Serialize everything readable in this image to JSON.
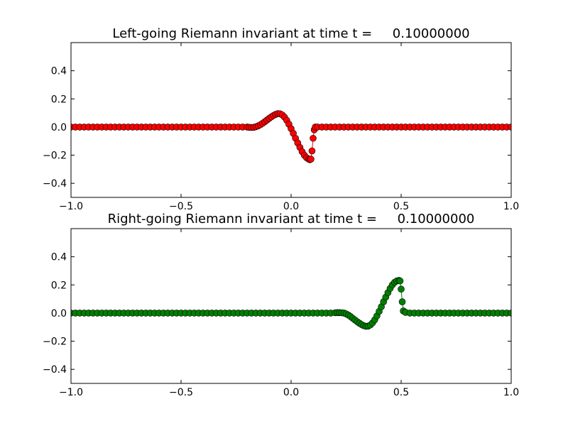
{
  "chart_data": [
    {
      "type": "line",
      "title": "Left-going Riemann invariant at time t =     0.10000000",
      "xlabel": "",
      "ylabel": "",
      "xlim": [
        -1.0,
        1.0
      ],
      "ylim": [
        -0.5,
        0.6
      ],
      "x_ticks": [
        "−1.0",
        "−0.5",
        "0.0",
        "0.5",
        "1.0"
      ],
      "y_ticks": [
        "−0.4",
        "−0.2",
        "0.0",
        "0.2",
        "0.4"
      ],
      "x_tick_values": [
        -1.0,
        -0.5,
        0.0,
        0.5,
        1.0
      ],
      "y_tick_values": [
        -0.4,
        -0.2,
        0.0,
        0.2,
        0.4
      ],
      "grid": false,
      "marker_color": "#ff0000",
      "line_color": "#ff0000",
      "x": [
        -1.0,
        -0.98,
        -0.96,
        -0.94,
        -0.92,
        -0.9,
        -0.88,
        -0.86,
        -0.84,
        -0.82,
        -0.8,
        -0.78,
        -0.76,
        -0.74,
        -0.72,
        -0.7,
        -0.68,
        -0.66,
        -0.64,
        -0.62,
        -0.6,
        -0.58,
        -0.56,
        -0.54,
        -0.52,
        -0.5,
        -0.48,
        -0.46,
        -0.44,
        -0.42,
        -0.4,
        -0.38,
        -0.36,
        -0.34,
        -0.32,
        -0.3,
        -0.28,
        -0.26,
        -0.24,
        -0.22,
        -0.2,
        -0.19,
        -0.18,
        -0.17,
        -0.16,
        -0.15,
        -0.14,
        -0.13,
        -0.12,
        -0.11,
        -0.1,
        -0.09,
        -0.08,
        -0.07,
        -0.06,
        -0.05,
        -0.04,
        -0.03,
        -0.02,
        -0.01,
        0.0,
        0.01,
        0.02,
        0.03,
        0.04,
        0.05,
        0.06,
        0.07,
        0.08,
        0.085,
        0.09,
        0.095,
        0.1,
        0.105,
        0.11,
        0.12,
        0.14,
        0.16,
        0.18,
        0.2,
        0.22,
        0.24,
        0.26,
        0.28,
        0.3,
        0.32,
        0.34,
        0.36,
        0.38,
        0.4,
        0.42,
        0.44,
        0.46,
        0.48,
        0.5,
        0.52,
        0.54,
        0.56,
        0.58,
        0.6,
        0.62,
        0.64,
        0.66,
        0.68,
        0.7,
        0.72,
        0.74,
        0.76,
        0.78,
        0.8,
        0.82,
        0.84,
        0.86,
        0.88,
        0.9,
        0.92,
        0.94,
        0.96,
        0.98,
        1.0
      ],
      "y": [
        0,
        0,
        0,
        0,
        0,
        0,
        0,
        0,
        0,
        0,
        0,
        0,
        0,
        0,
        0,
        0,
        0,
        0,
        0,
        0,
        0,
        0,
        0,
        0,
        0,
        0,
        0,
        0,
        0,
        0,
        0,
        0,
        0,
        0,
        0,
        0,
        0,
        0,
        0,
        0,
        0,
        -0.002,
        -0.003,
        -0.002,
        0.002,
        0.008,
        0.016,
        0.026,
        0.037,
        0.049,
        0.061,
        0.072,
        0.082,
        0.09,
        0.095,
        0.094,
        0.086,
        0.07,
        0.048,
        0.02,
        -0.012,
        -0.045,
        -0.08,
        -0.113,
        -0.145,
        -0.175,
        -0.2,
        -0.218,
        -0.228,
        -0.232,
        -0.228,
        -0.17,
        -0.08,
        -0.02,
        0.0,
        0,
        0,
        0,
        0,
        0,
        0,
        0,
        0,
        0,
        0,
        0,
        0,
        0,
        0,
        0,
        0,
        0,
        0,
        0,
        0,
        0,
        0,
        0,
        0,
        0,
        0,
        0,
        0,
        0,
        0,
        0,
        0,
        0,
        0,
        0,
        0,
        0,
        0,
        0,
        0,
        0,
        0,
        0,
        0,
        0
      ]
    },
    {
      "type": "line",
      "title": "Right-going Riemann invariant at time t =     0.10000000",
      "xlabel": "",
      "ylabel": "",
      "xlim": [
        -1.0,
        1.0
      ],
      "ylim": [
        -0.5,
        0.6
      ],
      "x_ticks": [
        "−1.0",
        "−0.5",
        "0.0",
        "0.5",
        "1.0"
      ],
      "y_ticks": [
        "−0.4",
        "−0.2",
        "0.0",
        "0.2",
        "0.4"
      ],
      "x_tick_values": [
        -1.0,
        -0.5,
        0.0,
        0.5,
        1.0
      ],
      "y_tick_values": [
        -0.4,
        -0.2,
        0.0,
        0.2,
        0.4
      ],
      "grid": false,
      "marker_color": "#008000",
      "line_color": "#008000",
      "x": [
        -1.0,
        -0.98,
        -0.96,
        -0.94,
        -0.92,
        -0.9,
        -0.88,
        -0.86,
        -0.84,
        -0.82,
        -0.8,
        -0.78,
        -0.76,
        -0.74,
        -0.72,
        -0.7,
        -0.68,
        -0.66,
        -0.64,
        -0.62,
        -0.6,
        -0.58,
        -0.56,
        -0.54,
        -0.52,
        -0.5,
        -0.48,
        -0.46,
        -0.44,
        -0.42,
        -0.4,
        -0.38,
        -0.36,
        -0.34,
        -0.32,
        -0.3,
        -0.28,
        -0.26,
        -0.24,
        -0.22,
        -0.2,
        -0.18,
        -0.16,
        -0.14,
        -0.12,
        -0.1,
        -0.08,
        -0.06,
        -0.04,
        -0.02,
        0.0,
        0.02,
        0.04,
        0.06,
        0.08,
        0.1,
        0.12,
        0.14,
        0.16,
        0.18,
        0.2,
        0.21,
        0.22,
        0.23,
        0.24,
        0.25,
        0.26,
        0.27,
        0.28,
        0.29,
        0.3,
        0.31,
        0.32,
        0.33,
        0.34,
        0.35,
        0.36,
        0.37,
        0.38,
        0.39,
        0.4,
        0.41,
        0.42,
        0.43,
        0.44,
        0.45,
        0.46,
        0.47,
        0.48,
        0.49,
        0.495,
        0.5,
        0.505,
        0.51,
        0.52,
        0.54,
        0.56,
        0.58,
        0.6,
        0.62,
        0.64,
        0.66,
        0.68,
        0.7,
        0.72,
        0.74,
        0.76,
        0.78,
        0.8,
        0.82,
        0.84,
        0.86,
        0.88,
        0.9,
        0.92,
        0.94,
        0.96,
        0.98,
        1.0
      ],
      "y": [
        0,
        0,
        0,
        0,
        0,
        0,
        0,
        0,
        0,
        0,
        0,
        0,
        0,
        0,
        0,
        0,
        0,
        0,
        0,
        0,
        0,
        0,
        0,
        0,
        0,
        0,
        0,
        0,
        0,
        0,
        0,
        0,
        0,
        0,
        0,
        0,
        0,
        0,
        0,
        0,
        0,
        0,
        0,
        0,
        0,
        0,
        0,
        0,
        0,
        0,
        0,
        0,
        0,
        0,
        0,
        0,
        0,
        0,
        0,
        0,
        0.002,
        0.003,
        0.003,
        0.002,
        0.0,
        -0.006,
        -0.014,
        -0.025,
        -0.037,
        -0.049,
        -0.061,
        -0.072,
        -0.082,
        -0.09,
        -0.094,
        -0.093,
        -0.085,
        -0.07,
        -0.048,
        -0.02,
        0.012,
        0.045,
        0.08,
        0.113,
        0.145,
        0.175,
        0.2,
        0.218,
        0.228,
        0.232,
        0.228,
        0.17,
        0.08,
        0.015,
        0.005,
        0,
        0,
        0,
        0,
        0,
        0,
        0,
        0,
        0,
        0,
        0,
        0,
        0,
        0,
        0,
        0,
        0,
        0,
        0,
        0,
        0,
        0,
        0,
        0
      ]
    }
  ]
}
